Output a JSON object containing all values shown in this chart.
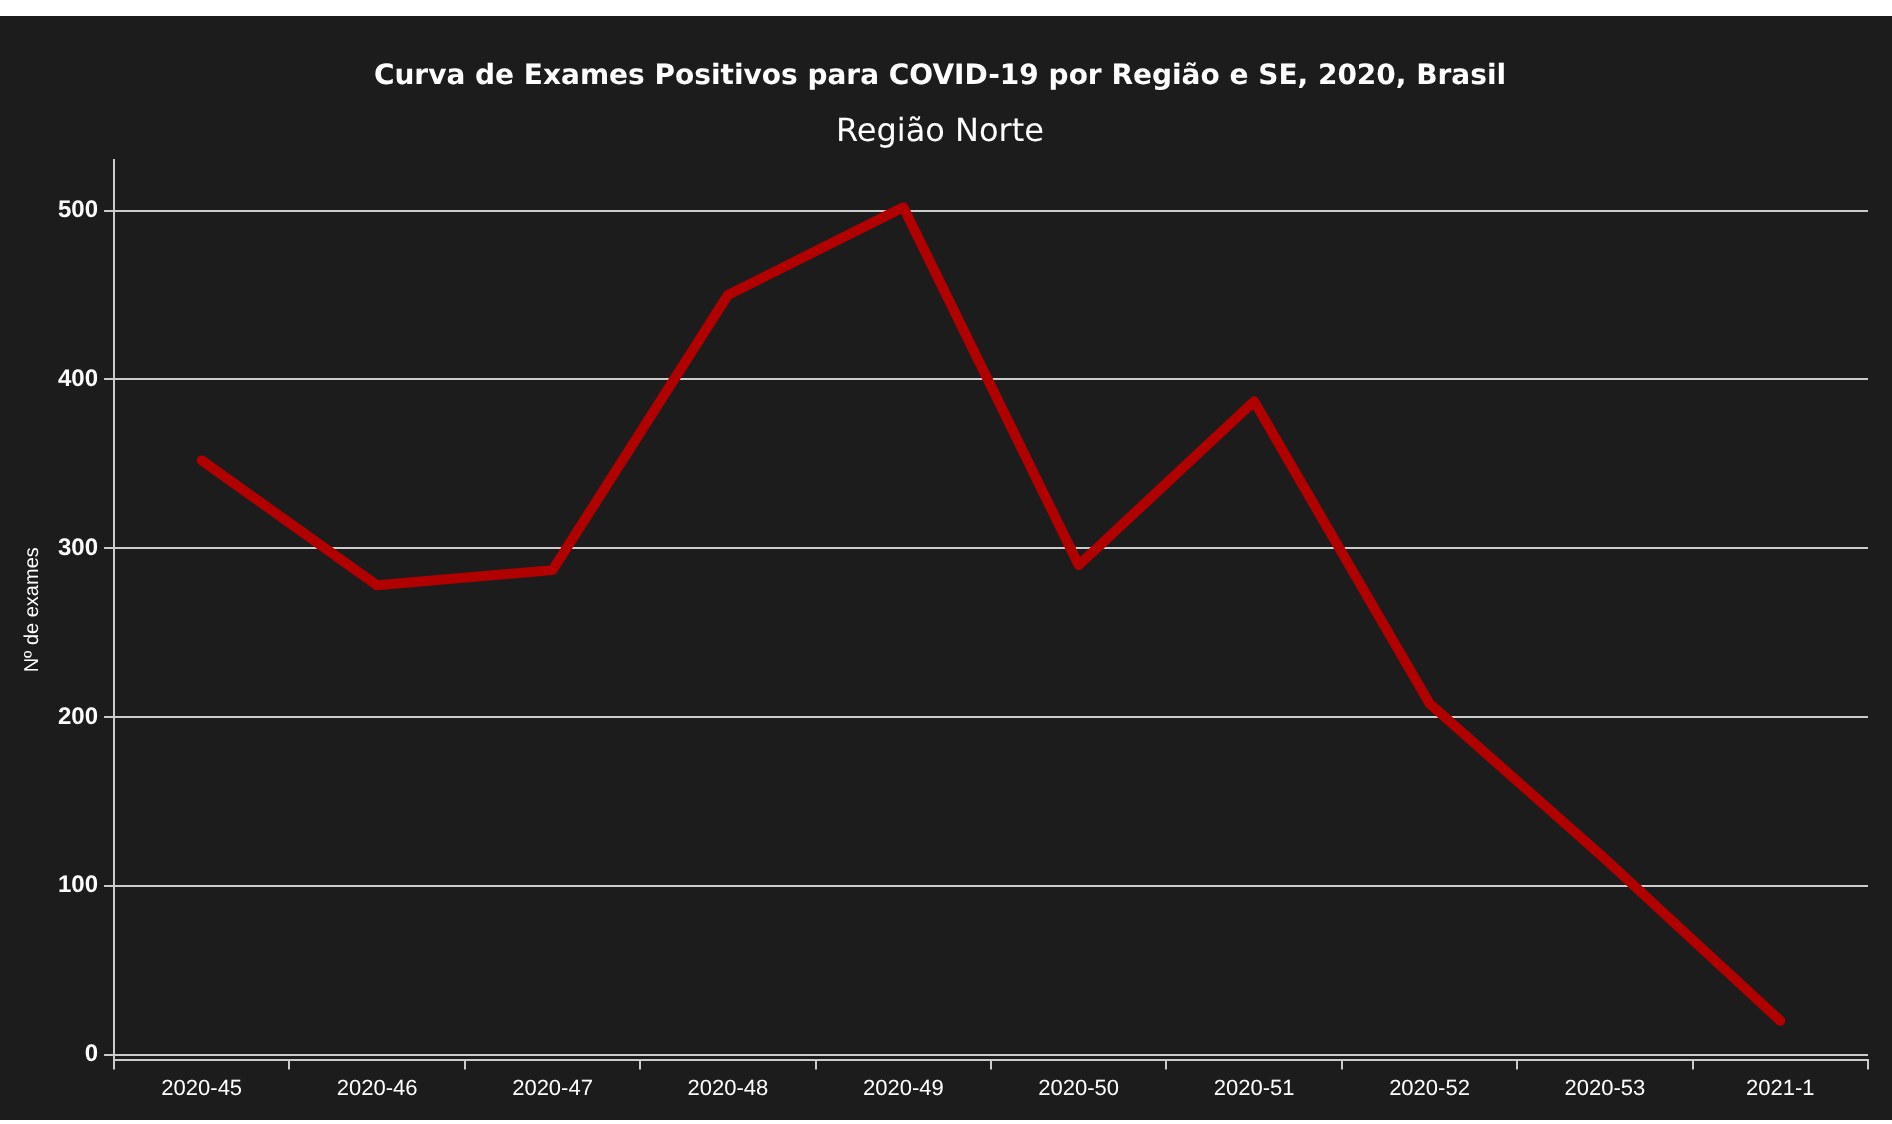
{
  "chart_data": {
    "type": "line",
    "title": "Curva de Exames Positivos para COVID-19 por Região e SE, 2020, Brasil",
    "subtitle": "Região Norte",
    "ylabel": "Nº de exames",
    "categories": [
      "2020-45",
      "2020-46",
      "2020-47",
      "2020-48",
      "2020-49",
      "2020-50",
      "2020-51",
      "2020-52",
      "2020-53",
      "2021-1"
    ],
    "series": [
      {
        "color": "#b00000",
        "values": [
          352,
          278,
          287,
          450,
          502,
          290,
          387,
          208,
          116,
          20
        ]
      }
    ],
    "ylim": [
      -3,
      530
    ],
    "yticks": [
      0,
      100,
      200,
      300,
      400,
      500
    ],
    "grid": "y",
    "legend": false,
    "marker": "none",
    "line_style": "solid"
  }
}
